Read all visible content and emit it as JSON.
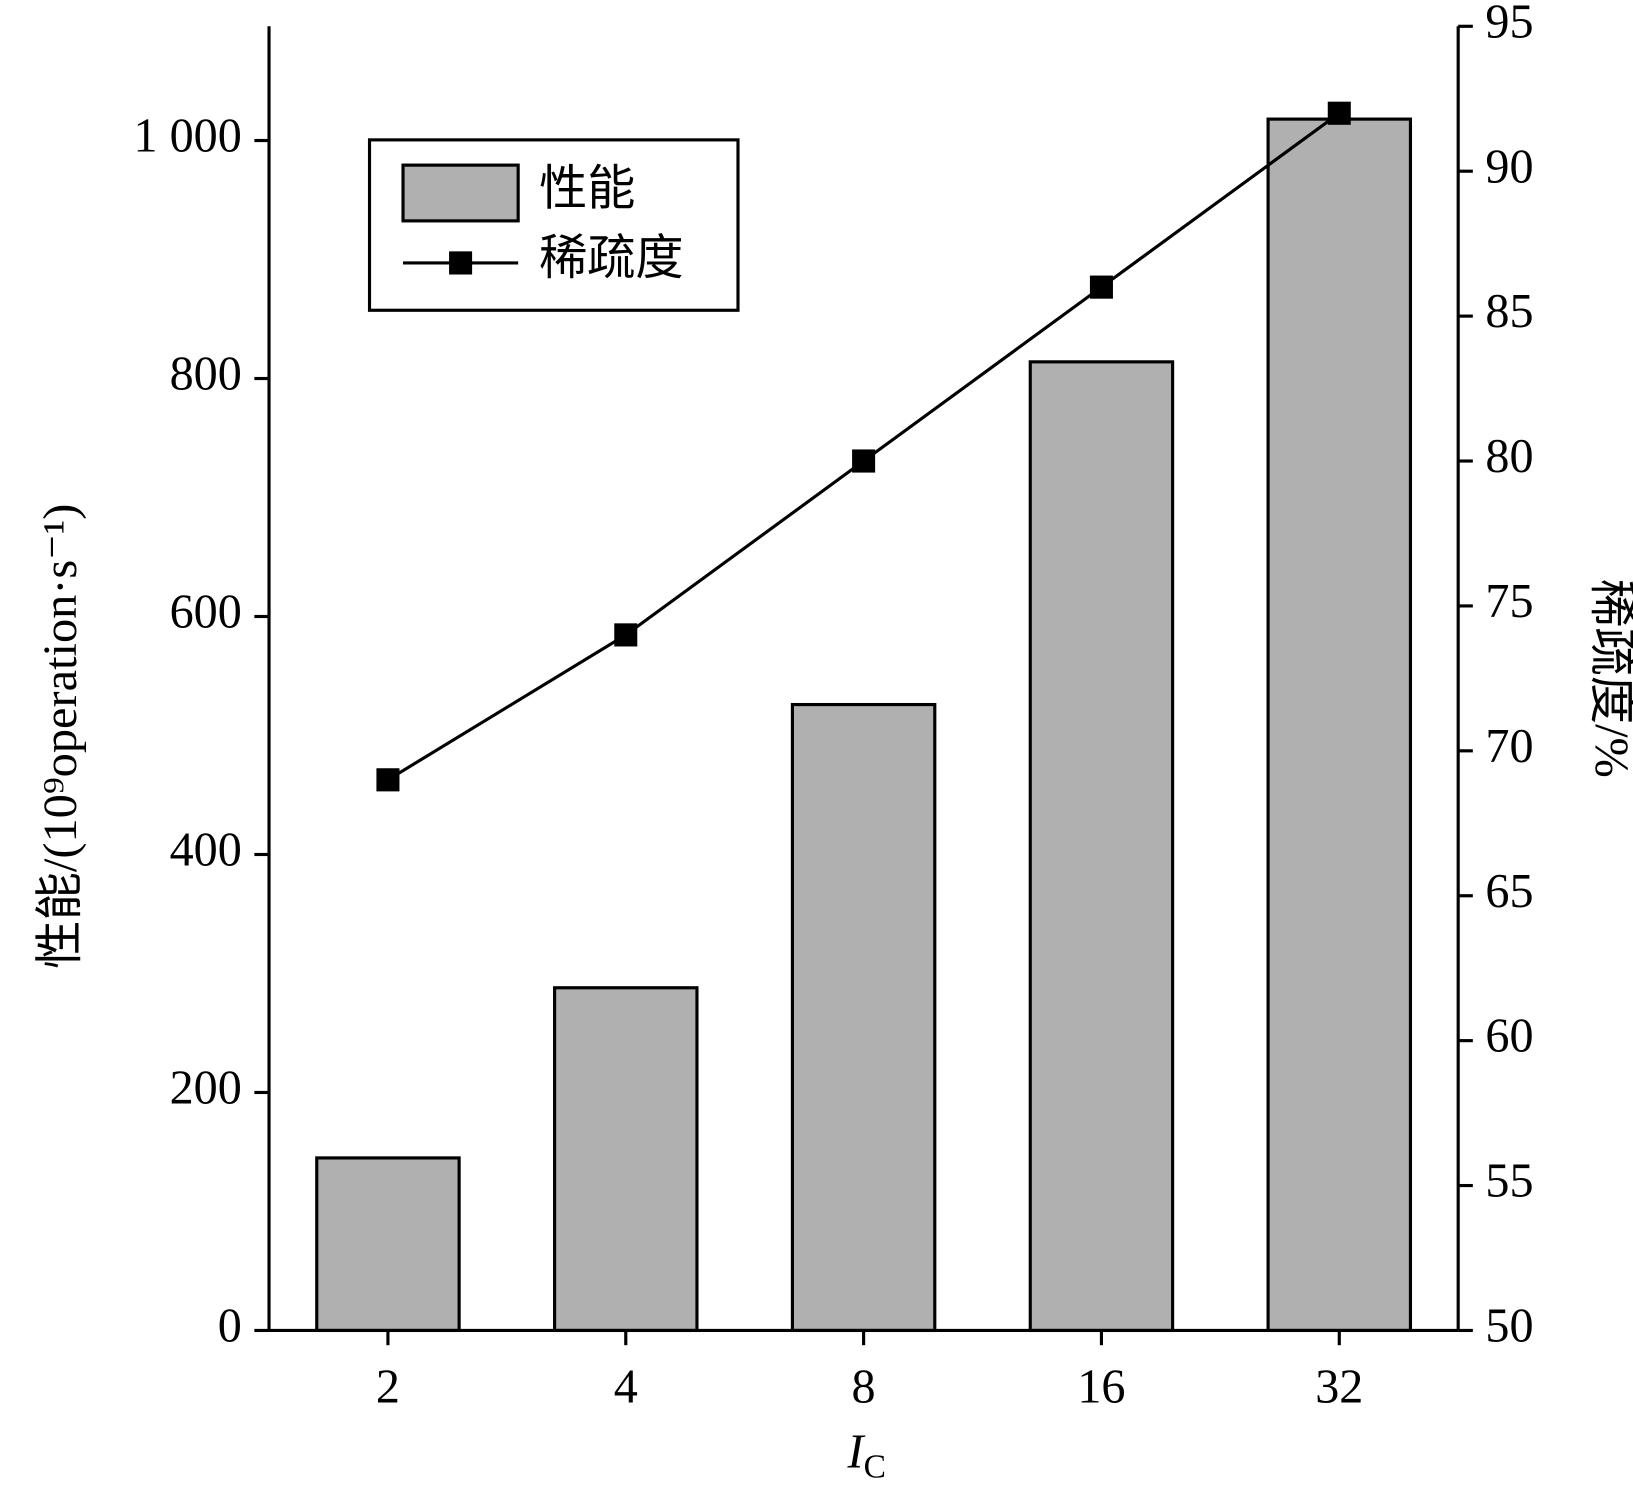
{
  "chart_data": {
    "type": "bar-line",
    "categories": [
      "2",
      "4",
      "8",
      "16",
      "32"
    ],
    "series": [
      {
        "name": "性能",
        "type": "bar",
        "color": "#b0b0b0",
        "values": [
          145,
          288,
          526,
          814,
          1018
        ]
      },
      {
        "name": "稀疏度",
        "type": "line",
        "color": "#000000",
        "axis": "y2",
        "values": [
          69,
          74,
          80,
          86,
          92
        ]
      }
    ],
    "x_label": {
      "text": "I",
      "subscript": "C"
    },
    "y_label": "性能/(10⁹operation·s⁻¹)",
    "y2_label": "稀疏度/%",
    "ylim": [
      0,
      1096
    ],
    "yticks": [
      0,
      200,
      400,
      600,
      800,
      {
        "value": 1000,
        "label": "1 000"
      }
    ],
    "y2lim": [
      50,
      95
    ],
    "y2ticks": [
      50,
      55,
      60,
      65,
      70,
      75,
      80,
      85,
      90,
      95
    ],
    "legend": "top-left"
  }
}
